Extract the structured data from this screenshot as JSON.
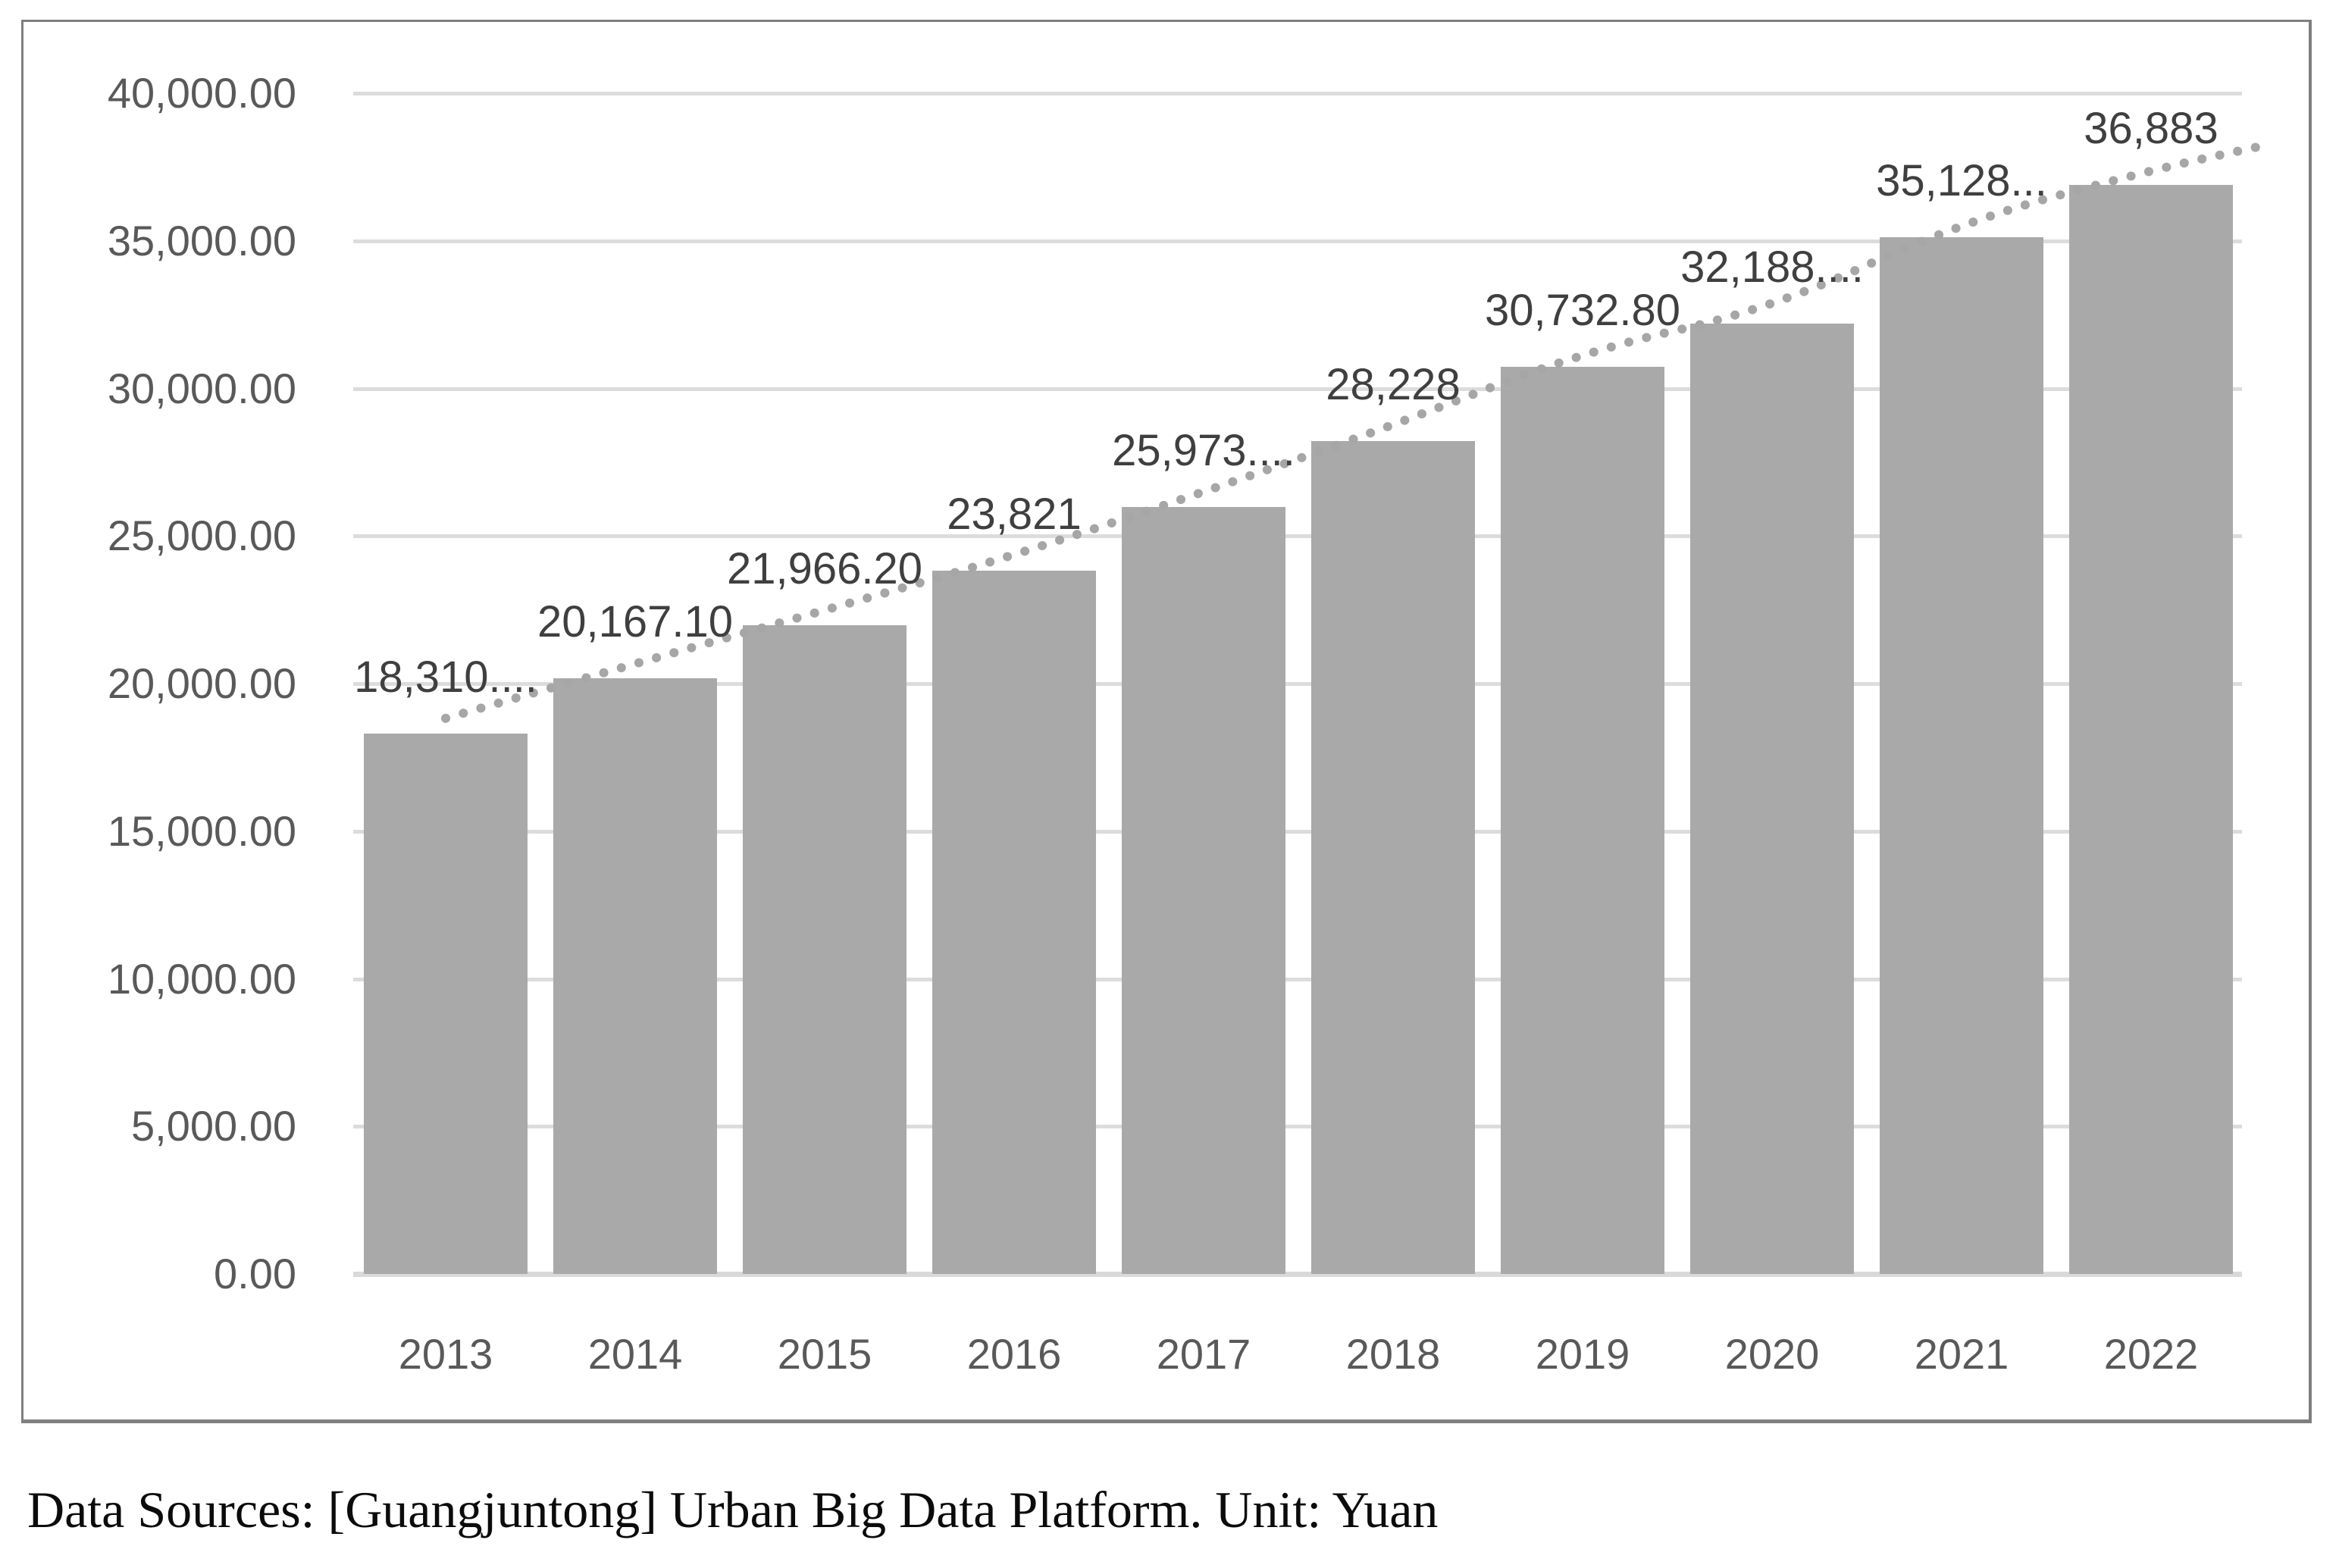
{
  "caption": "Data Sources: [Guangjuntong] Urban Big Data Platform. Unit: Yuan",
  "chart_data": {
    "type": "bar",
    "title": "",
    "xlabel": "",
    "ylabel": "",
    "unit": "Yuan",
    "categories": [
      "2013",
      "2014",
      "2015",
      "2016",
      "2017",
      "2018",
      "2019",
      "2020",
      "2021",
      "2022"
    ],
    "values": [
      18310,
      20167.1,
      21966.2,
      23821,
      25973,
      28228,
      30732.8,
      32188,
      35128,
      36883
    ],
    "bar_labels": [
      "18,310....",
      "20,167.10",
      "21,966.20",
      "23,821",
      "25,973....",
      "28,228",
      "30,732.80",
      "32,188....",
      "35,128...",
      "36,883"
    ],
    "y_ticks": [
      "40,000.00",
      "35,000.00",
      "30,000.00",
      "25,000.00",
      "20,000.00",
      "15,000.00",
      "10,000.00",
      "5,000.00",
      "0.00"
    ],
    "ylim": [
      0,
      40000
    ],
    "grid": true,
    "legend": "none",
    "trendline": "dotted",
    "colors": {
      "bar": "#a9a9a9",
      "gridline": "#dcdcdc",
      "baseline": "#d9d9d9",
      "trendline": "#a6a6a6",
      "axis_text": "#595959",
      "label_text": "#3f3f3f",
      "frame_border": "#7f7f7f"
    }
  }
}
